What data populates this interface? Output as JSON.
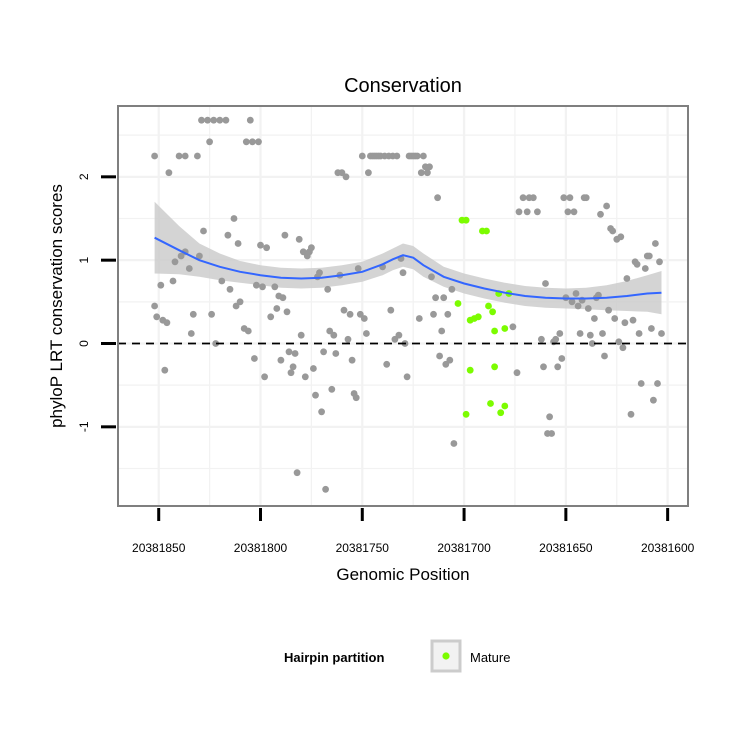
{
  "chart_data": {
    "type": "scatter",
    "title": "Conservation",
    "xlabel": "Genomic Position",
    "ylabel": "phyloP LRT conservation scores",
    "x_reversed": true,
    "xlim": [
      20381870,
      20381590
    ],
    "ylim": [
      -1.95,
      2.85
    ],
    "x_ticks": [
      20381850,
      20381800,
      20381750,
      20381700,
      20381650,
      20381600
    ],
    "x_tick_labels": [
      "20381850",
      "20381800",
      "20381750",
      "20381700",
      "20381650",
      "20381600"
    ],
    "y_ticks": [
      -1,
      0,
      1,
      2
    ],
    "y_tick_labels": [
      "-1",
      "0",
      "1",
      "2"
    ],
    "reference_line_y": 0,
    "grid": true,
    "legend": {
      "title": "Hairpin partition",
      "position": "bottom",
      "entries": [
        {
          "label": "Mature",
          "color": "#7CFC00"
        }
      ]
    },
    "colors": {
      "other": "#999999",
      "mature": "#7CFC00",
      "smooth": "#3366FF",
      "band": "#CCCCCC",
      "panel_border": "#7F7F7F"
    },
    "series": [
      {
        "name": "Mature",
        "points": [
          [
            20381703,
            0.48
          ],
          [
            20381701,
            1.48
          ],
          [
            20381699,
            1.48
          ],
          [
            20381697,
            0.28
          ],
          [
            20381695,
            0.3
          ],
          [
            20381693,
            0.32
          ],
          [
            20381691,
            1.35
          ],
          [
            20381689,
            1.35
          ],
          [
            20381688,
            0.45
          ],
          [
            20381686,
            0.38
          ],
          [
            20381685,
            0.15
          ],
          [
            20381683,
            0.6
          ],
          [
            20381680,
            0.18
          ],
          [
            20381678,
            0.6
          ],
          [
            20381699,
            -0.85
          ],
          [
            20381697,
            -0.32
          ],
          [
            20381685,
            -0.28
          ],
          [
            20381687,
            -0.72
          ],
          [
            20381682,
            -0.83
          ],
          [
            20381680,
            -0.75
          ]
        ]
      },
      {
        "name": "",
        "points": [
          [
            20381852,
            2.25
          ],
          [
            20381852,
            0.45
          ],
          [
            20381851,
            0.32
          ],
          [
            20381849,
            0.7
          ],
          [
            20381848,
            0.28
          ],
          [
            20381847,
            -0.32
          ],
          [
            20381846,
            0.25
          ],
          [
            20381845,
            2.05
          ],
          [
            20381843,
            0.75
          ],
          [
            20381842,
            0.98
          ],
          [
            20381840,
            2.25
          ],
          [
            20381839,
            1.05
          ],
          [
            20381837,
            1.1
          ],
          [
            20381837,
            2.25
          ],
          [
            20381835,
            0.9
          ],
          [
            20381834,
            0.12
          ],
          [
            20381833,
            0.35
          ],
          [
            20381831,
            2.25
          ],
          [
            20381830,
            1.05
          ],
          [
            20381829,
            2.68
          ],
          [
            20381828,
            1.35
          ],
          [
            20381826,
            2.68
          ],
          [
            20381825,
            2.42
          ],
          [
            20381824,
            0.35
          ],
          [
            20381823,
            2.68
          ],
          [
            20381822,
            0.0
          ],
          [
            20381820,
            2.68
          ],
          [
            20381819,
            0.75
          ],
          [
            20381817,
            2.68
          ],
          [
            20381816,
            1.3
          ],
          [
            20381815,
            0.65
          ],
          [
            20381813,
            1.5
          ],
          [
            20381812,
            0.45
          ],
          [
            20381811,
            1.2
          ],
          [
            20381810,
            0.5
          ],
          [
            20381808,
            0.18
          ],
          [
            20381807,
            2.42
          ],
          [
            20381806,
            0.15
          ],
          [
            20381805,
            2.68
          ],
          [
            20381804,
            2.42
          ],
          [
            20381803,
            -0.18
          ],
          [
            20381802,
            0.7
          ],
          [
            20381801,
            2.42
          ],
          [
            20381800,
            1.18
          ],
          [
            20381799,
            0.68
          ],
          [
            20381798,
            -0.4
          ],
          [
            20381797,
            1.15
          ],
          [
            20381795,
            0.32
          ],
          [
            20381793,
            0.68
          ],
          [
            20381792,
            0.42
          ],
          [
            20381791,
            0.57
          ],
          [
            20381790,
            -0.2
          ],
          [
            20381789,
            0.55
          ],
          [
            20381788,
            1.3
          ],
          [
            20381787,
            0.38
          ],
          [
            20381786,
            -0.1
          ],
          [
            20381785,
            -0.35
          ],
          [
            20381784,
            -0.28
          ],
          [
            20381783,
            -0.12
          ],
          [
            20381782,
            -1.55
          ],
          [
            20381781,
            1.25
          ],
          [
            20381780,
            0.1
          ],
          [
            20381779,
            1.1
          ],
          [
            20381778,
            -0.4
          ],
          [
            20381777,
            1.05
          ],
          [
            20381776,
            1.1
          ],
          [
            20381775,
            1.15
          ],
          [
            20381774,
            -0.3
          ],
          [
            20381773,
            -0.62
          ],
          [
            20381772,
            0.8
          ],
          [
            20381771,
            0.85
          ],
          [
            20381770,
            -0.82
          ],
          [
            20381769,
            -0.1
          ],
          [
            20381768,
            -1.75
          ],
          [
            20381767,
            0.65
          ],
          [
            20381766,
            0.15
          ],
          [
            20381765,
            -0.55
          ],
          [
            20381764,
            0.1
          ],
          [
            20381763,
            -0.12
          ],
          [
            20381762,
            2.05
          ],
          [
            20381761,
            0.82
          ],
          [
            20381760,
            2.05
          ],
          [
            20381759,
            0.4
          ],
          [
            20381758,
            2.0
          ],
          [
            20381757,
            0.05
          ],
          [
            20381756,
            0.35
          ],
          [
            20381755,
            -0.2
          ],
          [
            20381754,
            -0.6
          ],
          [
            20381753,
            -0.65
          ],
          [
            20381752,
            0.9
          ],
          [
            20381751,
            0.35
          ],
          [
            20381750,
            2.25
          ],
          [
            20381749,
            0.3
          ],
          [
            20381748,
            0.12
          ],
          [
            20381747,
            2.05
          ],
          [
            20381746,
            2.25
          ],
          [
            20381745,
            2.25
          ],
          [
            20381744,
            2.25
          ],
          [
            20381743,
            2.25
          ],
          [
            20381742,
            2.25
          ],
          [
            20381741,
            2.25
          ],
          [
            20381740,
            0.92
          ],
          [
            20381739,
            2.25
          ],
          [
            20381738,
            -0.25
          ],
          [
            20381737,
            2.25
          ],
          [
            20381736,
            0.4
          ],
          [
            20381735,
            2.25
          ],
          [
            20381734,
            0.05
          ],
          [
            20381733,
            2.25
          ],
          [
            20381732,
            0.1
          ],
          [
            20381731,
            1.02
          ],
          [
            20381730,
            0.85
          ],
          [
            20381729,
            0.0
          ],
          [
            20381728,
            -0.4
          ],
          [
            20381727,
            2.25
          ],
          [
            20381726,
            2.25
          ],
          [
            20381725,
            2.25
          ],
          [
            20381724,
            2.25
          ],
          [
            20381723,
            2.25
          ],
          [
            20381722,
            0.3
          ],
          [
            20381721,
            2.05
          ],
          [
            20381720,
            2.25
          ],
          [
            20381719,
            2.12
          ],
          [
            20381718,
            2.05
          ],
          [
            20381717,
            2.12
          ],
          [
            20381716,
            0.8
          ],
          [
            20381715,
            0.35
          ],
          [
            20381714,
            0.55
          ],
          [
            20381713,
            1.75
          ],
          [
            20381712,
            -0.15
          ],
          [
            20381711,
            0.15
          ],
          [
            20381710,
            0.55
          ],
          [
            20381709,
            -0.25
          ],
          [
            20381708,
            0.35
          ],
          [
            20381707,
            -0.2
          ],
          [
            20381706,
            0.65
          ],
          [
            20381705,
            -1.2
          ],
          [
            20381676,
            0.2
          ],
          [
            20381674,
            -0.35
          ],
          [
            20381673,
            1.58
          ],
          [
            20381671,
            1.75
          ],
          [
            20381669,
            1.58
          ],
          [
            20381668,
            1.75
          ],
          [
            20381666,
            1.75
          ],
          [
            20381664,
            1.58
          ],
          [
            20381662,
            0.05
          ],
          [
            20381661,
            -0.28
          ],
          [
            20381660,
            0.72
          ],
          [
            20381659,
            -1.08
          ],
          [
            20381658,
            -0.88
          ],
          [
            20381657,
            -1.08
          ],
          [
            20381656,
            0.02
          ],
          [
            20381655,
            0.05
          ],
          [
            20381654,
            -0.28
          ],
          [
            20381653,
            0.12
          ],
          [
            20381652,
            -0.18
          ],
          [
            20381651,
            1.75
          ],
          [
            20381650,
            0.55
          ],
          [
            20381649,
            1.58
          ],
          [
            20381648,
            1.75
          ],
          [
            20381647,
            0.5
          ],
          [
            20381646,
            1.58
          ],
          [
            20381645,
            0.6
          ],
          [
            20381644,
            0.45
          ],
          [
            20381643,
            0.12
          ],
          [
            20381642,
            0.52
          ],
          [
            20381641,
            1.75
          ],
          [
            20381640,
            1.75
          ],
          [
            20381639,
            0.42
          ],
          [
            20381638,
            0.1
          ],
          [
            20381637,
            0.0
          ],
          [
            20381636,
            0.3
          ],
          [
            20381635,
            0.55
          ],
          [
            20381634,
            0.58
          ],
          [
            20381633,
            1.55
          ],
          [
            20381632,
            0.12
          ],
          [
            20381631,
            -0.15
          ],
          [
            20381630,
            1.65
          ],
          [
            20381629,
            0.4
          ],
          [
            20381628,
            1.38
          ],
          [
            20381627,
            1.35
          ],
          [
            20381626,
            0.3
          ],
          [
            20381625,
            1.25
          ],
          [
            20381624,
            0.02
          ],
          [
            20381623,
            1.28
          ],
          [
            20381622,
            -0.05
          ],
          [
            20381621,
            0.25
          ],
          [
            20381620,
            0.78
          ],
          [
            20381618,
            -0.85
          ],
          [
            20381617,
            0.28
          ],
          [
            20381616,
            0.98
          ],
          [
            20381615,
            0.95
          ],
          [
            20381614,
            0.12
          ],
          [
            20381613,
            -0.48
          ],
          [
            20381611,
            0.9
          ],
          [
            20381610,
            1.05
          ],
          [
            20381609,
            1.05
          ],
          [
            20381608,
            0.18
          ],
          [
            20381607,
            -0.68
          ],
          [
            20381606,
            1.2
          ],
          [
            20381605,
            -0.48
          ],
          [
            20381604,
            0.98
          ],
          [
            20381603,
            0.12
          ]
        ]
      }
    ],
    "smooth": {
      "x": [
        20381852,
        20381840,
        20381830,
        20381820,
        20381810,
        20381800,
        20381790,
        20381780,
        20381770,
        20381760,
        20381750,
        20381740,
        20381735,
        20381730,
        20381725,
        20381720,
        20381710,
        20381700,
        20381690,
        20381680,
        20381670,
        20381660,
        20381650,
        20381640,
        20381630,
        20381620,
        20381610,
        20381603
      ],
      "y": [
        1.27,
        1.12,
        1.0,
        0.92,
        0.86,
        0.82,
        0.79,
        0.78,
        0.79,
        0.82,
        0.86,
        0.95,
        1.01,
        1.06,
        1.03,
        0.94,
        0.8,
        0.72,
        0.66,
        0.61,
        0.57,
        0.55,
        0.54,
        0.54,
        0.55,
        0.57,
        0.6,
        0.61
      ],
      "lower": [
        0.84,
        0.83,
        0.8,
        0.76,
        0.73,
        0.7,
        0.67,
        0.66,
        0.67,
        0.7,
        0.74,
        0.82,
        0.88,
        0.92,
        0.89,
        0.8,
        0.68,
        0.6,
        0.54,
        0.49,
        0.45,
        0.43,
        0.42,
        0.41,
        0.4,
        0.39,
        0.38,
        0.35
      ],
      "upper": [
        1.7,
        1.41,
        1.2,
        1.08,
        0.99,
        0.94,
        0.91,
        0.9,
        0.91,
        0.94,
        0.98,
        1.08,
        1.14,
        1.2,
        1.17,
        1.08,
        0.92,
        0.84,
        0.78,
        0.73,
        0.69,
        0.67,
        0.66,
        0.67,
        0.7,
        0.75,
        0.82,
        0.87
      ]
    }
  }
}
